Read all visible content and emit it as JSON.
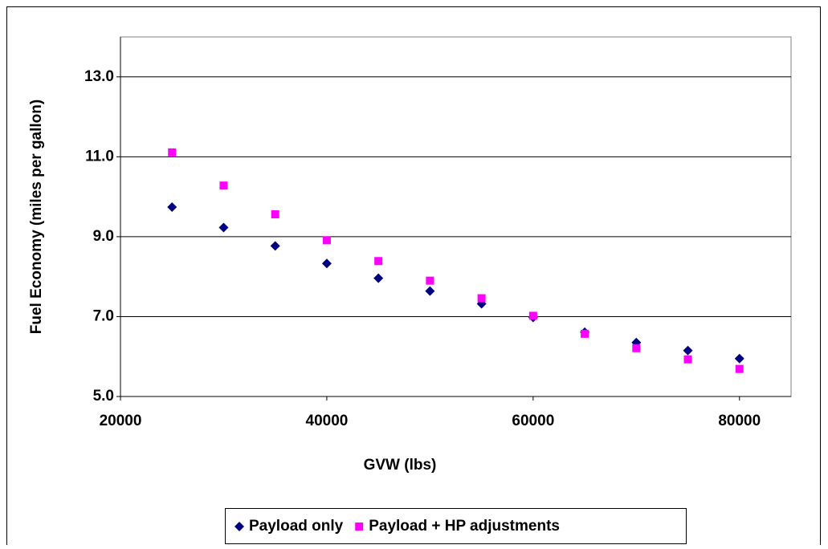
{
  "chart_data": {
    "type": "scatter",
    "x_label": "GVW (lbs)",
    "y_label": "Fuel Economy (miles per gallon)",
    "xlim": [
      20000,
      85000
    ],
    "xticks": [
      20000,
      40000,
      60000,
      80000
    ],
    "ylim": [
      5,
      14
    ],
    "yticks": [
      {
        "value": 5,
        "label": "5.0"
      },
      {
        "value": 7,
        "label": "7.0"
      },
      {
        "value": 9,
        "label": "9.0"
      },
      {
        "value": 11,
        "label": "11.0"
      },
      {
        "value": 13,
        "label": "13.0"
      }
    ],
    "grid": true,
    "legend": "bottom",
    "series": [
      {
        "name": "Payload only",
        "color": "#000080",
        "marker": "diamond",
        "x": [
          25000,
          30000,
          35000,
          40000,
          45000,
          50000,
          55000,
          60000,
          65000,
          70000,
          75000,
          80000
        ],
        "values": [
          9.74,
          9.23,
          8.77,
          8.33,
          7.96,
          7.64,
          7.32,
          6.98,
          6.61,
          6.35,
          6.15,
          5.95
        ]
      },
      {
        "name": "Payload + HP adjustments",
        "color": "#ff00ff",
        "marker": "square",
        "x": [
          25000,
          30000,
          35000,
          40000,
          45000,
          50000,
          55000,
          60000,
          65000,
          70000,
          75000,
          80000
        ],
        "values": [
          11.11,
          10.28,
          9.56,
          8.91,
          8.39,
          7.9,
          7.46,
          7.02,
          6.57,
          6.21,
          5.93,
          5.69
        ]
      }
    ]
  }
}
